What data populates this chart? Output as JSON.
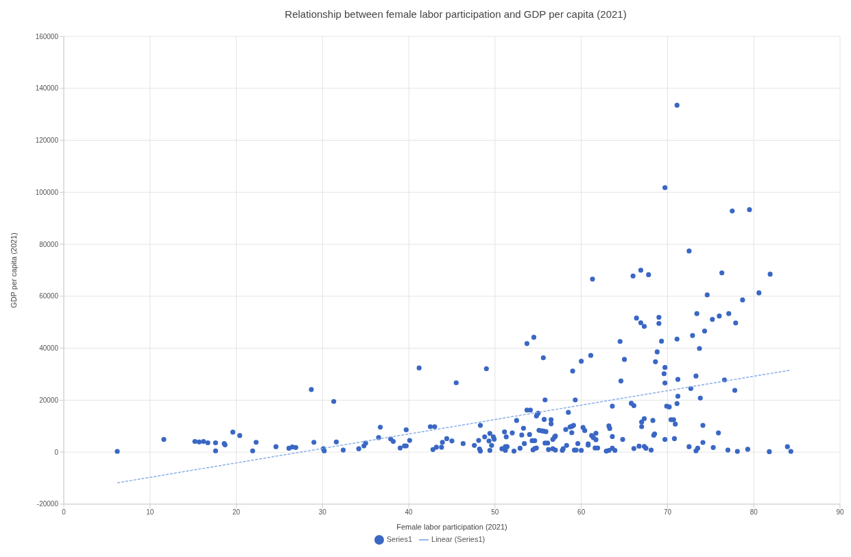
{
  "chart_data": {
    "type": "scatter",
    "title": "Relationship between female labor participation and GDP per capita (2021)",
    "xlabel": "Female labor participation (2021)",
    "ylabel": "GDP per capita (2021)",
    "xlim": [
      0,
      90
    ],
    "xticks": [
      0,
      10,
      20,
      30,
      40,
      50,
      60,
      70,
      80,
      90
    ],
    "ylim": [
      -20000,
      160000
    ],
    "yticks": [
      -20000,
      0,
      20000,
      40000,
      60000,
      80000,
      100000,
      120000,
      140000,
      160000
    ],
    "grid": true,
    "legend": "bottom",
    "marker": "circle",
    "series": [
      {
        "name": "Series1",
        "color": "#3a67c4",
        "x": [
          6.2,
          11.6,
          15.2,
          15.7,
          16.2,
          16.7,
          17.6,
          17.6,
          18.6,
          18.7,
          19.6,
          20.4,
          21.9,
          22.3,
          24.6,
          26.1,
          26.5,
          26.9,
          28.7,
          29.0,
          30.1,
          30.2,
          31.3,
          31.6,
          32.4,
          34.2,
          34.8,
          35.0,
          36.5,
          36.7,
          37.9,
          38.2,
          39.0,
          39.5,
          39.7,
          39.7,
          40.1,
          41.2,
          42.5,
          43.0,
          42.8,
          43.2,
          43.8,
          43.9,
          44.4,
          45.0,
          45.5,
          46.3,
          47.6,
          48.1,
          48.2,
          48.3,
          48.3,
          48.8,
          49.0,
          49.3,
          49.4,
          49.6,
          49.4,
          49.8,
          49.9,
          50.8,
          51.1,
          51.2,
          51.3,
          51.2,
          51.4,
          52.0,
          52.2,
          52.5,
          52.9,
          53.1,
          53.3,
          53.4,
          53.7,
          53.7,
          54.1,
          54.0,
          54.3,
          54.6,
          54.4,
          54.6,
          54.8,
          54.5,
          54.8,
          54.9,
          55.0,
          55.6,
          55.1,
          55.4,
          55.6,
          55.9,
          55.7,
          55.8,
          55.8,
          56.1,
          56.2,
          56.5,
          56.5,
          56.7,
          56.9,
          57.0,
          56.7,
          57.0,
          57.8,
          57.9,
          58.2,
          58.3,
          58.5,
          58.7,
          58.9,
          59.1,
          58.9,
          59.0,
          59.3,
          59.2,
          59.4,
          59.6,
          60.0,
          60.0,
          60.2,
          60.4,
          60.8,
          60.8,
          61.1,
          61.3,
          61.2,
          61.4,
          61.7,
          61.7,
          61.6,
          61.9,
          62.9,
          63.2,
          63.2,
          63.9,
          63.6,
          63.3,
          63.6,
          63.6,
          64.5,
          64.6,
          64.8,
          65.0,
          65.8,
          66.1,
          66.0,
          66.1,
          66.4,
          66.7,
          66.9,
          66.9,
          67.3,
          67.0,
          67.0,
          67.3,
          67.3,
          67.5,
          67.8,
          68.1,
          68.3,
          68.4,
          68.5,
          68.6,
          68.8,
          69.0,
          69.0,
          69.3,
          69.6,
          69.7,
          69.7,
          69.7,
          69.7,
          69.9,
          70.2,
          70.4,
          70.7,
          70.8,
          70.9,
          71.1,
          71.2,
          71.2,
          71.1,
          71.1,
          72.5,
          72.7,
          72.9,
          73.3,
          73.4,
          73.3,
          73.5,
          73.7,
          73.8,
          74.1,
          74.1,
          74.3,
          74.6,
          72.5,
          75.2,
          75.3,
          75.9,
          76.0,
          76.3,
          76.6,
          77.5,
          79.5,
          77.0,
          77.1,
          77.8,
          77.9,
          78.1,
          78.7,
          79.3,
          80.6,
          81.8,
          81.9,
          83.9,
          84.3
        ],
        "values": [
          300,
          4900,
          4100,
          3900,
          4100,
          3600,
          3600,
          500,
          3300,
          2800,
          7700,
          6400,
          500,
          3800,
          2100,
          1500,
          2000,
          1800,
          24100,
          3800,
          1300,
          500,
          19500,
          3900,
          800,
          1300,
          2400,
          3500,
          5600,
          9600,
          5100,
          4100,
          1600,
          2400,
          2400,
          8600,
          4500,
          32400,
          9800,
          9800,
          1000,
          1900,
          1900,
          3800,
          5200,
          4300,
          26700,
          3300,
          2600,
          4500,
          1200,
          400,
          10300,
          5900,
          32100,
          4300,
          7200,
          2600,
          700,
          5900,
          5000,
          1300,
          7800,
          700,
          5900,
          2100,
          2100,
          7400,
          400,
          12200,
          1500,
          6600,
          9200,
          3300,
          41800,
          16200,
          16200,
          6800,
          4400,
          4400,
          900,
          1400,
          1600,
          44200,
          13900,
          14600,
          15000,
          36300,
          8400,
          8200,
          8100,
          7900,
          12600,
          20100,
          3500,
          3500,
          1000,
          12500,
          10900,
          4900,
          5800,
          6200,
          1300,
          800,
          700,
          1300,
          8700,
          2600,
          15300,
          9700,
          9900,
          10300,
          7500,
          31200,
          20100,
          800,
          800,
          3300,
          35000,
          700,
          9500,
          8300,
          2700,
          3200,
          37200,
          66600,
          6400,
          5600,
          4800,
          7300,
          1600,
          1600,
          400,
          700,
          10100,
          700,
          1500,
          9100,
          6000,
          17700,
          42600,
          27400,
          4900,
          35700,
          18800,
          17900,
          67800,
          1400,
          51600,
          2300,
          70000,
          49800,
          48400,
          9800,
          11600,
          12900,
          2200,
          1500,
          68300,
          800,
          12200,
          6500,
          7000,
          34800,
          38600,
          51900,
          49500,
          42700,
          30200,
          32600,
          26600,
          4900,
          101800,
          17700,
          17400,
          12500,
          12500,
          5200,
          10800,
          18700,
          21500,
          28000,
          43500,
          133500,
          2100,
          24500,
          44900,
          29300,
          53300,
          500,
          1500,
          39900,
          20800,
          10300,
          3700,
          46600,
          60500,
          77400,
          51100,
          1800,
          7400,
          52400,
          69000,
          27800,
          92800,
          93300,
          800,
          53300,
          23800,
          49700,
          300,
          58600,
          1100,
          61300,
          200,
          68500,
          2100,
          300
        ]
      },
      {
        "name": "Linear (Series1)",
        "type": "line",
        "color": "#8aaee6",
        "marker": "none",
        "line_style": "dashed",
        "x": [
          6.2,
          84.3
        ],
        "values": [
          -11800,
          31600
        ]
      }
    ]
  }
}
